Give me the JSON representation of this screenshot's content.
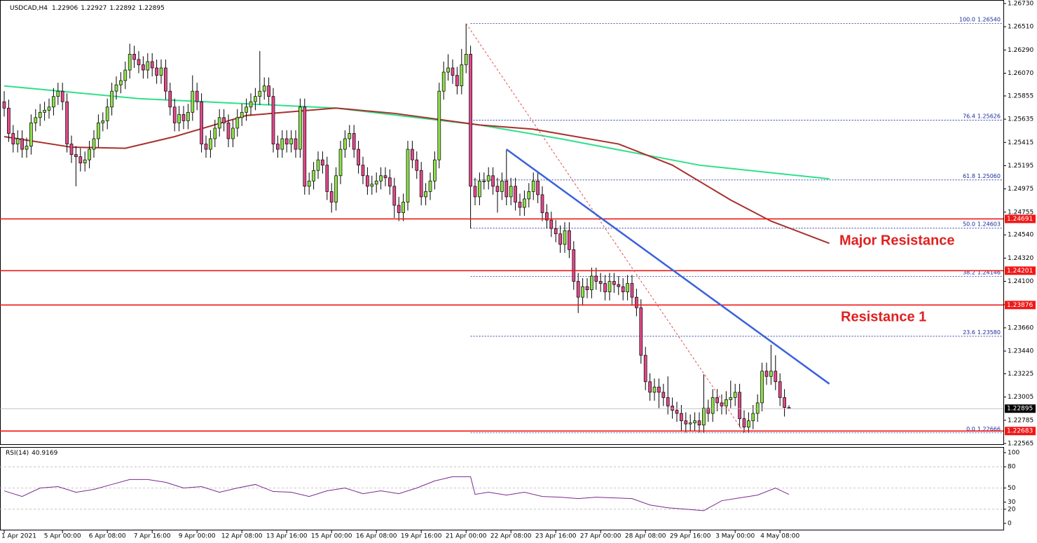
{
  "header": {
    "symbol": "USDCAD,H4"
  },
  "chart_data": [
    {
      "type": "candlestick",
      "open": [
        1.258,
        1.2574,
        1.255,
        1.254,
        1.2545,
        1.2535,
        1.2538,
        1.256,
        1.2565,
        1.257,
        1.2572,
        1.2575,
        1.2585,
        1.259,
        1.258,
        1.254,
        1.253,
        1.2528,
        1.2522,
        1.2525,
        1.2535,
        1.2545,
        1.256,
        1.2562,
        1.2575,
        1.259,
        1.2596,
        1.26,
        1.261,
        1.2625,
        1.262,
        1.2615,
        1.261,
        1.2618,
        1.2612,
        1.2605,
        1.2612,
        1.259,
        1.2575,
        1.256,
        1.2568,
        1.2562,
        1.257,
        1.259,
        1.258,
        1.254,
        1.2535,
        1.2545,
        1.2555,
        1.2565,
        1.256,
        1.2545,
        1.2555,
        1.2565,
        1.257,
        1.2575,
        1.258,
        1.2585,
        1.259,
        1.2595,
        1.2585,
        1.254,
        1.2535,
        1.2545,
        1.254,
        1.2545,
        1.2535,
        1.2575,
        1.25,
        1.2505,
        1.2515,
        1.2525,
        1.252,
        1.2495,
        1.2485,
        1.251,
        1.2535,
        1.2545,
        1.255,
        1.2535,
        1.252,
        1.251,
        1.25,
        1.2502,
        1.2505,
        1.251,
        1.2508,
        1.25,
        1.2482,
        1.2475,
        1.2485,
        1.2535,
        1.2525,
        1.2515,
        1.249,
        1.2495,
        1.2505,
        1.2525,
        1.259,
        1.2608,
        1.2612,
        1.2605,
        1.2595,
        1.2615,
        1.2625,
        1.25,
        1.249,
        1.2505,
        1.2505,
        1.251,
        1.25,
        1.2495,
        1.2505,
        1.249,
        1.25,
        1.2485,
        1.248,
        1.2488,
        1.2495,
        1.2505,
        1.2492,
        1.2475,
        1.2468,
        1.246,
        1.2455,
        1.2445,
        1.2458,
        1.244,
        1.241,
        1.2395,
        1.2405,
        1.2402,
        1.2415,
        1.241,
        1.2408,
        1.24,
        1.241,
        1.2407,
        1.2405,
        1.24,
        1.2408,
        1.2395,
        1.2385,
        1.234,
        1.2315,
        1.2305,
        1.231,
        1.2305,
        1.23,
        1.2292,
        1.2288,
        1.2285,
        1.2278,
        1.2275,
        1.2276,
        1.2278,
        1.2274,
        1.229,
        1.2285,
        1.23,
        1.2295,
        1.2292,
        1.2298,
        1.23,
        1.2305,
        1.228,
        1.2272,
        1.2278,
        1.2285,
        1.2295,
        1.2325,
        1.232,
        1.2325,
        1.2315,
        1.23,
        1.22906
      ],
      "high": [
        1.259,
        1.2582,
        1.2558,
        1.2553,
        1.2553,
        1.2546,
        1.2568,
        1.2573,
        1.2578,
        1.258,
        1.2583,
        1.2593,
        1.2598,
        1.2598,
        1.2588,
        1.2548,
        1.2538,
        1.2536,
        1.2533,
        1.2543,
        1.2553,
        1.2568,
        1.257,
        1.2583,
        1.2598,
        1.2604,
        1.2608,
        1.2618,
        1.2635,
        1.2633,
        1.2628,
        1.2623,
        1.2626,
        1.2626,
        1.262,
        1.262,
        1.262,
        1.2598,
        1.2583,
        1.2576,
        1.2576,
        1.2578,
        1.2605,
        1.2598,
        1.2588,
        1.2548,
        1.2553,
        1.2563,
        1.2573,
        1.2573,
        1.2568,
        1.2563,
        1.2573,
        1.2578,
        1.2583,
        1.2588,
        1.2593,
        1.2628,
        1.2603,
        1.2603,
        1.2593,
        1.2548,
        1.2553,
        1.2553,
        1.2553,
        1.2553,
        1.2583,
        1.2583,
        1.2513,
        1.2523,
        1.2533,
        1.2533,
        1.2528,
        1.2503,
        1.2518,
        1.2543,
        1.2553,
        1.2558,
        1.2558,
        1.2543,
        1.2528,
        1.2518,
        1.251,
        1.2513,
        1.2518,
        1.2518,
        1.2516,
        1.2508,
        1.249,
        1.2493,
        1.2543,
        1.2543,
        1.2533,
        1.2523,
        1.2503,
        1.2513,
        1.2533,
        1.2598,
        1.2618,
        1.2625,
        1.262,
        1.2613,
        1.263,
        1.2654,
        1.2633,
        1.2508,
        1.2513,
        1.2513,
        1.2518,
        1.2518,
        1.2508,
        1.2513,
        1.2535,
        1.2508,
        1.2508,
        1.2493,
        1.2496,
        1.2503,
        1.2513,
        1.2513,
        1.25,
        1.2483,
        1.2476,
        1.2468,
        1.2463,
        1.2466,
        1.2466,
        1.2448,
        1.2418,
        1.2413,
        1.2413,
        1.2423,
        1.2423,
        1.2418,
        1.2416,
        1.2418,
        1.2418,
        1.2415,
        1.2413,
        1.2416,
        1.2416,
        1.2403,
        1.2393,
        1.2348,
        1.2323,
        1.2318,
        1.2318,
        1.2313,
        1.232,
        1.23,
        1.2296,
        1.2293,
        1.2286,
        1.2284,
        1.2286,
        1.2286,
        1.2322,
        1.2298,
        1.2308,
        1.2308,
        1.2303,
        1.2306,
        1.2316,
        1.2313,
        1.2313,
        1.2288,
        1.2286,
        1.2293,
        1.2303,
        1.2333,
        1.2333,
        1.235,
        1.234,
        1.2323,
        1.2308,
        1.22927
      ],
      "low": [
        1.2566,
        1.2542,
        1.2532,
        1.2532,
        1.2527,
        1.2527,
        1.253,
        1.2552,
        1.2557,
        1.2562,
        1.2564,
        1.2567,
        1.2577,
        1.2572,
        1.2532,
        1.2522,
        1.25,
        1.2514,
        1.2514,
        1.2517,
        1.2527,
        1.2537,
        1.2552,
        1.2554,
        1.2567,
        1.2582,
        1.2588,
        1.2592,
        1.2602,
        1.2612,
        1.2607,
        1.2602,
        1.2602,
        1.2604,
        1.2597,
        1.2597,
        1.2582,
        1.2567,
        1.2552,
        1.2552,
        1.2554,
        1.2554,
        1.2562,
        1.2572,
        1.2532,
        1.2527,
        1.2527,
        1.2537,
        1.2547,
        1.2552,
        1.2537,
        1.2537,
        1.2547,
        1.2557,
        1.2562,
        1.2567,
        1.2572,
        1.2577,
        1.2582,
        1.2577,
        1.2532,
        1.2527,
        1.2527,
        1.2532,
        1.2532,
        1.2527,
        1.2527,
        1.2492,
        1.2492,
        1.2497,
        1.2507,
        1.2512,
        1.2487,
        1.2475,
        1.2477,
        1.2502,
        1.2527,
        1.2537,
        1.2527,
        1.2512,
        1.2502,
        1.2492,
        1.2492,
        1.2494,
        1.2497,
        1.25,
        1.2492,
        1.247,
        1.2467,
        1.2467,
        1.2477,
        1.2517,
        1.2507,
        1.2482,
        1.2482,
        1.2487,
        1.2497,
        1.2517,
        1.2582,
        1.26,
        1.2597,
        1.2587,
        1.2587,
        1.2607,
        1.246,
        1.2482,
        1.2482,
        1.2497,
        1.2497,
        1.2492,
        1.2475,
        1.2487,
        1.2482,
        1.2482,
        1.2477,
        1.2472,
        1.2472,
        1.248,
        1.2487,
        1.2484,
        1.2467,
        1.246,
        1.2452,
        1.2447,
        1.2437,
        1.2437,
        1.2432,
        1.2402,
        1.238,
        1.2387,
        1.2394,
        1.2394,
        1.2402,
        1.24,
        1.2392,
        1.2392,
        1.2399,
        1.2397,
        1.2392,
        1.2392,
        1.2387,
        1.2377,
        1.2332,
        1.2307,
        1.2297,
        1.2297,
        1.229,
        1.2292,
        1.2284,
        1.228,
        1.2277,
        1.2268,
        1.2267,
        1.2268,
        1.2268,
        1.2267,
        1.2267,
        1.2277,
        1.2277,
        1.2287,
        1.2284,
        1.2284,
        1.229,
        1.2292,
        1.2272,
        1.2267,
        1.2267,
        1.227,
        1.2277,
        1.2287,
        1.2312,
        1.2312,
        1.2307,
        1.2292,
        1.2282,
        1.22892
      ],
      "close": [
        1.2574,
        1.255,
        1.254,
        1.2545,
        1.2535,
        1.2538,
        1.256,
        1.2565,
        1.257,
        1.2572,
        1.2575,
        1.2585,
        1.259,
        1.258,
        1.254,
        1.253,
        1.2528,
        1.2522,
        1.2525,
        1.2535,
        1.2545,
        1.256,
        1.2562,
        1.2575,
        1.259,
        1.2596,
        1.26,
        1.261,
        1.2625,
        1.262,
        1.2615,
        1.261,
        1.2618,
        1.2612,
        1.2605,
        1.2612,
        1.259,
        1.2575,
        1.256,
        1.2568,
        1.2562,
        1.257,
        1.259,
        1.258,
        1.254,
        1.2535,
        1.2545,
        1.2555,
        1.2565,
        1.256,
        1.2545,
        1.2555,
        1.2565,
        1.257,
        1.2575,
        1.258,
        1.2585,
        1.259,
        1.2595,
        1.2585,
        1.254,
        1.2535,
        1.2545,
        1.254,
        1.2545,
        1.2535,
        1.2575,
        1.25,
        1.2505,
        1.2515,
        1.2525,
        1.252,
        1.2495,
        1.2485,
        1.251,
        1.2535,
        1.2545,
        1.255,
        1.2535,
        1.252,
        1.251,
        1.25,
        1.2502,
        1.2505,
        1.251,
        1.2508,
        1.25,
        1.2482,
        1.2475,
        1.2485,
        1.2535,
        1.2525,
        1.2515,
        1.249,
        1.2495,
        1.2505,
        1.2525,
        1.259,
        1.2608,
        1.2612,
        1.2605,
        1.2595,
        1.2615,
        1.2625,
        1.25,
        1.249,
        1.2505,
        1.2505,
        1.251,
        1.25,
        1.2495,
        1.2505,
        1.249,
        1.25,
        1.2485,
        1.248,
        1.2488,
        1.2495,
        1.2505,
        1.2492,
        1.2475,
        1.2468,
        1.246,
        1.2455,
        1.2445,
        1.2458,
        1.244,
        1.241,
        1.2395,
        1.2405,
        1.2402,
        1.2415,
        1.241,
        1.2408,
        1.24,
        1.241,
        1.2407,
        1.2405,
        1.24,
        1.2408,
        1.2395,
        1.2385,
        1.234,
        1.2315,
        1.2305,
        1.231,
        1.2305,
        1.23,
        1.2292,
        1.2288,
        1.2285,
        1.2278,
        1.2275,
        1.2276,
        1.2278,
        1.2274,
        1.229,
        1.2285,
        1.23,
        1.2295,
        1.2292,
        1.2298,
        1.23,
        1.2305,
        1.228,
        1.2272,
        1.2278,
        1.2285,
        1.2295,
        1.2325,
        1.232,
        1.2325,
        1.2315,
        1.23,
        1.22906,
        1.22895
      ],
      "bull_color": "#8ee04a",
      "bear_color": "#e2488a",
      "x_labels": [
        {
          "index": 0,
          "label": "1 Apr 2021"
        },
        {
          "index": 13,
          "label": "5 Apr 00:00"
        },
        {
          "index": 23,
          "label": "6 Apr 08:00"
        },
        {
          "index": 33,
          "label": "7 Apr 16:00"
        },
        {
          "index": 43,
          "label": "9 Apr 00:00"
        },
        {
          "index": 53,
          "label": "12 Apr 08:00"
        },
        {
          "index": 63,
          "label": "13 Apr 16:00"
        },
        {
          "index": 73,
          "label": "15 Apr 00:00"
        },
        {
          "index": 83,
          "label": "16 Apr 08:00"
        },
        {
          "index": 93,
          "label": "19 Apr 16:00"
        },
        {
          "index": 103,
          "label": "21 Apr 00:00"
        },
        {
          "index": 113,
          "label": "22 Apr 08:00"
        },
        {
          "index": 123,
          "label": "23 Apr 16:00"
        },
        {
          "index": 133,
          "label": "27 Apr 00:00"
        },
        {
          "index": 143,
          "label": "28 Apr 08:00"
        },
        {
          "index": 153,
          "label": "29 Apr 16:00"
        },
        {
          "index": 163,
          "label": "3 May 00:00"
        },
        {
          "index": 173,
          "label": "4 May 08:00"
        }
      ],
      "ylim": [
        1.22565,
        1.2673
      ],
      "yticks": [
        {
          "value": 1.2673,
          "label": "1.26730"
        },
        {
          "value": 1.2651,
          "label": "1.26510"
        },
        {
          "value": 1.2629,
          "label": "1.26290"
        },
        {
          "value": 1.2607,
          "label": "1.26070"
        },
        {
          "value": 1.25855,
          "label": "1.25855"
        },
        {
          "value": 1.25635,
          "label": "1.25635"
        },
        {
          "value": 1.25415,
          "label": "1.25415"
        },
        {
          "value": 1.25195,
          "label": "1.25195"
        },
        {
          "value": 1.24975,
          "label": "1.24975"
        },
        {
          "value": 1.24755,
          "label": "1.24755"
        },
        {
          "value": 1.2454,
          "label": "1.24540"
        },
        {
          "value": 1.2432,
          "label": "1.24320"
        },
        {
          "value": 1.241,
          "label": "1.24100"
        },
        {
          "value": 1.2388,
          "label": "1.23880"
        },
        {
          "value": 1.2366,
          "label": "1.23660"
        },
        {
          "value": 1.2344,
          "label": "1.23440"
        },
        {
          "value": 1.23225,
          "label": "1.23225"
        },
        {
          "value": 1.23005,
          "label": "1.23005"
        },
        {
          "value": 1.22785,
          "label": "1.22785"
        },
        {
          "value": 1.22565,
          "label": "1.22565"
        }
      ],
      "moving_averages": [
        {
          "color": "#2ee08a",
          "index": [
            0,
            30,
            74,
            106,
            124,
            155,
            184
          ],
          "values": [
            1.2595,
            1.2583,
            1.2574,
            1.2558,
            1.2545,
            1.252,
            1.2507
          ]
        },
        {
          "color": "#a8302c",
          "index": [
            0,
            15,
            27,
            38,
            54,
            74,
            87,
            106,
            118,
            137,
            149,
            162,
            171,
            184
          ],
          "values": [
            1.2547,
            1.2537,
            1.2536,
            1.2547,
            1.2567,
            1.2574,
            1.2569,
            1.2558,
            1.2554,
            1.254,
            1.252,
            1.2487,
            1.2467,
            1.2446
          ]
        }
      ],
      "levels": [
        {
          "value": 1.24691,
          "color": "#f01818"
        },
        {
          "value": 1.24201,
          "color": "#f01818"
        },
        {
          "value": 1.23876,
          "color": "#f01818"
        },
        {
          "value": 1.22683,
          "color": "#f01818"
        }
      ],
      "fibonacci": {
        "start_index": 104,
        "color": "#1a2a9a",
        "levels": [
          {
            "ratio": "100.0",
            "price": 1.2654,
            "price_label": "1.26540"
          },
          {
            "ratio": "76.4",
            "price": 1.25626,
            "price_label": "1.25626"
          },
          {
            "ratio": "61.8",
            "price": 1.2506,
            "price_label": "1.25060"
          },
          {
            "ratio": "50.0",
            "price": 1.24603,
            "price_label": "1.24603"
          },
          {
            "ratio": "38.2",
            "price": 1.24146,
            "price_label": "1.24146"
          },
          {
            "ratio": "23.6",
            "price": 1.2358,
            "price_label": "1.23580"
          },
          {
            "ratio": "0.0",
            "price": 1.22666,
            "price_label": "1.22666"
          }
        ]
      },
      "trendlines": [
        {
          "color": "#e05050",
          "dashed": true,
          "index": [
            103,
            165
          ],
          "values": [
            1.2654,
            1.22666
          ]
        },
        {
          "color": "#3a62dc",
          "dashed": false,
          "index": [
            112,
            184
          ],
          "values": [
            1.2535,
            1.2313
          ]
        }
      ],
      "annotations": [
        "Major Resistance",
        "Resistance 1"
      ]
    },
    {
      "type": "line",
      "label": "RSI(14)",
      "color": "#7a2a8e",
      "index": [
        0,
        4,
        8,
        12,
        16,
        20,
        24,
        28,
        32,
        36,
        40,
        44,
        48,
        52,
        56,
        60,
        64,
        68,
        72,
        76,
        80,
        84,
        88,
        92,
        96,
        100,
        104,
        105,
        108,
        112,
        116,
        120,
        124,
        128,
        132,
        136,
        140,
        144,
        148,
        152,
        156,
        160,
        164,
        168,
        172,
        175
      ],
      "values": [
        46,
        38,
        50,
        52,
        44,
        48,
        55,
        62,
        62,
        58,
        50,
        52,
        44,
        50,
        55,
        45,
        44,
        38,
        46,
        50,
        42,
        46,
        42,
        50,
        60,
        66,
        66,
        41,
        44,
        40,
        44,
        38,
        37,
        35,
        37,
        36,
        35,
        26,
        22,
        20,
        18,
        32,
        36,
        40,
        50,
        40.9169
      ],
      "ylim": [
        0,
        100
      ],
      "yticks": [
        0,
        20,
        30,
        50,
        80,
        100
      ],
      "levels": [
        20,
        50,
        80
      ]
    }
  ]
}
